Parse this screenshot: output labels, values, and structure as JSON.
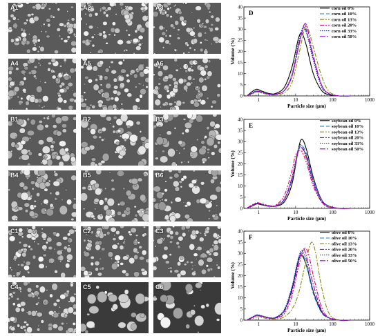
{
  "micrographs": {
    "labels": [
      "A1",
      "A2",
      "A3",
      "A4",
      "A5",
      "A6",
      "B1",
      "B2",
      "B3",
      "B4",
      "B5",
      "B6",
      "C1",
      "C2",
      "C3",
      "C4",
      "C5",
      "C6"
    ]
  },
  "chart_data": [
    {
      "type": "line",
      "panel": "D",
      "xscale": "log",
      "xlim": [
        0.4,
        1000
      ],
      "ylim": [
        0,
        40
      ],
      "xticks": [
        1,
        10,
        100,
        1000
      ],
      "yticks": [
        0,
        5,
        10,
        15,
        20,
        25,
        30,
        35,
        40
      ],
      "xlabel": "Particle size (μm)",
      "ylabel": "Volume (%)",
      "legend_position": "top-right",
      "series": [
        {
          "name": "corn oil 0%",
          "color": "#000000",
          "dash": "",
          "x": [
            0.5,
            0.7,
            0.9,
            1.2,
            2,
            3,
            5,
            8,
            12,
            15,
            20,
            30,
            50,
            80,
            150,
            300
          ],
          "y": [
            0.2,
            2.2,
            3.0,
            2.2,
            1.0,
            1.2,
            4,
            13,
            26,
            28,
            22,
            10,
            2.5,
            0.5,
            0,
            0
          ]
        },
        {
          "name": "corn oil 10%",
          "color": "#1f77b4",
          "dash": "6,3",
          "x": [
            0.5,
            0.7,
            0.9,
            1.2,
            2,
            3,
            5,
            8,
            12,
            16,
            20,
            30,
            50,
            80,
            150,
            300
          ],
          "y": [
            0.2,
            1.6,
            2.3,
            1.8,
            0.8,
            0.8,
            2.5,
            9,
            22,
            30,
            28,
            18,
            5,
            1,
            0,
            0
          ]
        },
        {
          "name": "corn oil 13%",
          "color": "#8b8b00",
          "dash": "6,2,2,2",
          "x": [
            0.5,
            0.7,
            0.9,
            1.2,
            2,
            3,
            5,
            8,
            12,
            18,
            22,
            30,
            50,
            80,
            150,
            300
          ],
          "y": [
            0.1,
            1.0,
            1.8,
            1.3,
            0.5,
            0.5,
            1.5,
            6,
            18,
            31,
            30,
            22,
            9,
            2,
            0,
            0
          ]
        },
        {
          "name": "corn oil 20%",
          "color": "#e0007a",
          "dash": "6,2,2,2,2,2",
          "x": [
            0.5,
            0.7,
            0.9,
            1.2,
            2,
            3,
            5,
            8,
            12,
            17,
            20,
            30,
            50,
            80,
            150,
            300
          ],
          "y": [
            0.2,
            1.4,
            2.2,
            1.7,
            0.7,
            0.8,
            2.5,
            9,
            23,
            31,
            29,
            17,
            5,
            1,
            0,
            0
          ]
        },
        {
          "name": "corn oil 33%",
          "color": "#2b2bb0",
          "dash": "1.5,1.5",
          "x": [
            0.5,
            0.7,
            0.9,
            1.2,
            2,
            3,
            5,
            8,
            12,
            16,
            20,
            30,
            50,
            80,
            150,
            300
          ],
          "y": [
            0.2,
            1.4,
            2.2,
            1.7,
            0.8,
            0.8,
            2.6,
            10,
            24,
            31,
            28,
            16,
            4,
            1,
            0,
            0
          ]
        },
        {
          "name": "corn oil 50%",
          "color": "#9400d3",
          "dash": "8,2,2,2",
          "x": [
            0.5,
            0.7,
            0.9,
            1.2,
            2,
            3,
            5,
            8,
            12,
            17,
            21,
            30,
            50,
            80,
            150,
            300
          ],
          "y": [
            0.2,
            1.3,
            2.0,
            1.6,
            0.7,
            0.8,
            2.5,
            9,
            22,
            32,
            30,
            18,
            5,
            1,
            0,
            0
          ]
        }
      ]
    },
    {
      "type": "line",
      "panel": "E",
      "xscale": "log",
      "xlim": [
        0.4,
        1000
      ],
      "ylim": [
        0,
        40
      ],
      "xticks": [
        1,
        10,
        100,
        1000
      ],
      "yticks": [
        0,
        5,
        10,
        15,
        20,
        25,
        30,
        35,
        40
      ],
      "xlabel": "Particle size (μm)",
      "ylabel": "Volume (%)",
      "legend_position": "top-right",
      "series": [
        {
          "name": "soybean oil 0%",
          "color": "#000000",
          "dash": "",
          "x": [
            0.5,
            0.7,
            0.9,
            1.2,
            2,
            3,
            5,
            8,
            12,
            15,
            20,
            30,
            50,
            80,
            150,
            300
          ],
          "y": [
            0.2,
            1.2,
            2.0,
            1.6,
            0.9,
            1.0,
            3,
            11,
            27,
            31,
            26,
            14,
            4,
            1,
            0,
            0
          ]
        },
        {
          "name": "soybean oil 10%",
          "color": "#1f77b4",
          "dash": "6,3",
          "x": [
            0.5,
            0.7,
            0.9,
            1.2,
            2,
            3,
            5,
            8,
            12,
            15,
            20,
            30,
            50,
            80,
            150,
            300
          ],
          "y": [
            0.2,
            1.5,
            2.3,
            1.9,
            1.0,
            1.2,
            4,
            13,
            26,
            28,
            24,
            13,
            4,
            1,
            0,
            0
          ]
        },
        {
          "name": "soybean oil 13%",
          "color": "#8b8b00",
          "dash": "6,2,2,2",
          "x": [
            0.5,
            0.7,
            0.9,
            1.2,
            2,
            3,
            5,
            8,
            12,
            15,
            20,
            30,
            50,
            80,
            150,
            300
          ],
          "y": [
            0.2,
            1.4,
            2.2,
            1.8,
            1.0,
            1.2,
            4,
            14,
            27,
            27,
            22,
            12,
            3.5,
            1,
            0,
            0
          ]
        },
        {
          "name": "soybean oil 20%",
          "color": "#e0007a",
          "dash": "6,2,2,2,2,2",
          "x": [
            0.5,
            0.7,
            0.9,
            1.2,
            2,
            3,
            5,
            8,
            10,
            14,
            20,
            30,
            50,
            80,
            150,
            300
          ],
          "y": [
            0.3,
            1.8,
            2.6,
            2.1,
            1.2,
            1.6,
            6,
            17,
            24,
            26,
            20,
            10,
            3,
            0.5,
            0,
            0
          ]
        },
        {
          "name": "soybean oil 33%",
          "color": "#2b2bb0",
          "dash": "1.5,1.5",
          "x": [
            0.5,
            0.7,
            0.9,
            1.2,
            2,
            3,
            5,
            8,
            12,
            15,
            20,
            30,
            50,
            80,
            150,
            300
          ],
          "y": [
            0.2,
            1.5,
            2.3,
            1.9,
            1.0,
            1.3,
            4.5,
            14,
            27,
            28,
            22,
            11,
            3,
            0.5,
            0,
            0
          ]
        },
        {
          "name": "soybean oil 50%",
          "color": "#9400d3",
          "dash": "8,2,2,2",
          "x": [
            0.5,
            0.7,
            0.9,
            1.2,
            2,
            3,
            5,
            8,
            12,
            15,
            20,
            30,
            50,
            80,
            150,
            300
          ],
          "y": [
            0.2,
            1.4,
            2.2,
            1.8,
            1.0,
            1.2,
            4,
            13,
            26,
            27,
            23,
            12,
            3.5,
            1,
            0,
            0
          ]
        }
      ]
    },
    {
      "type": "line",
      "panel": "F",
      "xscale": "log",
      "xlim": [
        0.4,
        1000
      ],
      "ylim": [
        0,
        40
      ],
      "xticks": [
        1,
        10,
        100,
        1000
      ],
      "yticks": [
        0,
        5,
        10,
        15,
        20,
        25,
        30,
        35,
        40
      ],
      "xlabel": "Particle size (μm)",
      "ylabel": "Volume (%)",
      "legend_position": "top-right",
      "series": [
        {
          "name": "olive oil 0%",
          "color": "#000000",
          "dash": "",
          "x": [
            0.5,
            0.7,
            0.9,
            1.2,
            2,
            3,
            5,
            8,
            12,
            15,
            20,
            30,
            50,
            80,
            150,
            300
          ],
          "y": [
            0.2,
            1.4,
            2.2,
            1.8,
            1.0,
            1.3,
            4.5,
            14,
            27,
            29,
            24,
            13,
            4,
            1,
            0,
            0
          ]
        },
        {
          "name": "olive oil 10%",
          "color": "#1f77b4",
          "dash": "6,3",
          "x": [
            0.5,
            0.7,
            0.9,
            1.2,
            2,
            3,
            5,
            8,
            12,
            15,
            20,
            30,
            50,
            80,
            150,
            300
          ],
          "y": [
            0.2,
            1.5,
            2.3,
            1.9,
            1.0,
            1.3,
            4.5,
            15,
            28,
            30,
            24,
            12,
            3.5,
            1,
            0,
            0
          ]
        },
        {
          "name": "olive oil 13%",
          "color": "#8b8b00",
          "dash": "6,2,2,2",
          "x": [
            0.5,
            0.7,
            0.9,
            1.2,
            2,
            3,
            5,
            8,
            12,
            20,
            27,
            35,
            50,
            80,
            150,
            300
          ],
          "y": [
            0.1,
            0.8,
            1.5,
            1.2,
            0.5,
            0.5,
            1.5,
            5,
            12,
            28,
            35,
            30,
            15,
            3,
            0,
            0
          ]
        },
        {
          "name": "olive oil 20%",
          "color": "#e0007a",
          "dash": "6,2,2,2,2,2",
          "x": [
            0.5,
            0.7,
            0.9,
            1.2,
            2,
            3,
            5,
            8,
            12,
            17,
            22,
            30,
            50,
            80,
            150,
            300
          ],
          "y": [
            0.2,
            1.2,
            2.0,
            1.6,
            0.8,
            0.9,
            3,
            11,
            24,
            32,
            30,
            20,
            6,
            1,
            0,
            0
          ]
        },
        {
          "name": "olive oil 33%",
          "color": "#2b2bb0",
          "dash": "1.5,1.5",
          "x": [
            0.5,
            0.7,
            0.9,
            1.2,
            2,
            3,
            5,
            8,
            12,
            15,
            20,
            30,
            50,
            80,
            150,
            300
          ],
          "y": [
            0.2,
            1.6,
            2.4,
            2.0,
            1.1,
            1.4,
            5,
            15,
            28,
            31,
            26,
            13,
            3.5,
            1,
            0,
            0
          ]
        },
        {
          "name": "olive oil 50%",
          "color": "#9400d3",
          "dash": "8,2,2,2",
          "x": [
            0.5,
            0.7,
            0.9,
            1.2,
            2,
            3,
            5,
            8,
            12,
            16,
            20,
            30,
            50,
            80,
            150,
            300
          ],
          "y": [
            0.2,
            1.3,
            2.1,
            1.7,
            0.9,
            1.1,
            4,
            13,
            26,
            32,
            28,
            16,
            4.5,
            1,
            0,
            0
          ]
        }
      ]
    }
  ]
}
